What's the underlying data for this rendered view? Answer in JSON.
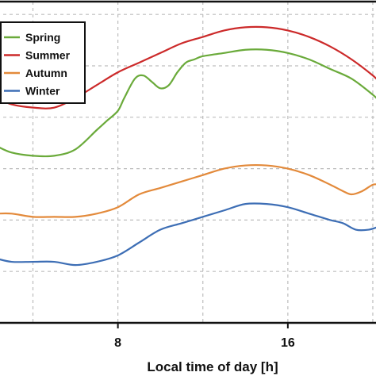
{
  "chart_data": {
    "type": "line",
    "title": "",
    "xlabel": "Local time of day [h]",
    "ylabel": "",
    "xlim": [
      2.3,
      20.3
    ],
    "ylim": [
      0,
      1
    ],
    "xticks": [
      8,
      16
    ],
    "xtick_labels": [
      "8",
      "16"
    ],
    "grid": true,
    "legend_position": "top-left",
    "series": [
      {
        "name": "Spring",
        "color": "#6aaa3a",
        "x": [
          2.3,
          3,
          4,
          5,
          6,
          7,
          7.5,
          8,
          8.3,
          8.8,
          9.2,
          9.6,
          10,
          10.4,
          10.8,
          11.2,
          11.6,
          12,
          13,
          14,
          15,
          16,
          17,
          18,
          19,
          20,
          20.3
        ],
        "y": [
          0.55,
          0.53,
          0.52,
          0.52,
          0.54,
          0.6,
          0.63,
          0.66,
          0.7,
          0.76,
          0.77,
          0.75,
          0.73,
          0.74,
          0.78,
          0.81,
          0.82,
          0.83,
          0.84,
          0.85,
          0.85,
          0.84,
          0.82,
          0.79,
          0.76,
          0.71,
          0.69
        ]
      },
      {
        "name": "Summer",
        "color": "#cc2a2a",
        "x": [
          2.3,
          3,
          4,
          5,
          6,
          7,
          8,
          9,
          10,
          11,
          12,
          13,
          14,
          15,
          16,
          17,
          18,
          19,
          20,
          20.3
        ],
        "y": [
          0.7,
          0.68,
          0.67,
          0.67,
          0.7,
          0.74,
          0.78,
          0.81,
          0.84,
          0.87,
          0.89,
          0.91,
          0.92,
          0.92,
          0.91,
          0.89,
          0.86,
          0.82,
          0.77,
          0.75
        ]
      },
      {
        "name": "Autumn",
        "color": "#e38a3b",
        "x": [
          2.3,
          3,
          4,
          5,
          6,
          7,
          8,
          9,
          10,
          11,
          12,
          13,
          14,
          15,
          16,
          17,
          18,
          18.6,
          19,
          19.5,
          20,
          20.3
        ],
        "y": [
          0.34,
          0.34,
          0.33,
          0.33,
          0.33,
          0.34,
          0.36,
          0.4,
          0.42,
          0.44,
          0.46,
          0.48,
          0.49,
          0.49,
          0.48,
          0.46,
          0.43,
          0.41,
          0.4,
          0.41,
          0.43,
          0.43
        ]
      },
      {
        "name": "Winter",
        "color": "#3d6eb5",
        "x": [
          2.3,
          3,
          4,
          5,
          6,
          7,
          8,
          9,
          10,
          11,
          12,
          13,
          14,
          15,
          16,
          17,
          18,
          18.6,
          19.2,
          19.8,
          20.3
        ],
        "y": [
          0.2,
          0.19,
          0.19,
          0.19,
          0.18,
          0.19,
          0.21,
          0.25,
          0.29,
          0.31,
          0.33,
          0.35,
          0.37,
          0.37,
          0.36,
          0.34,
          0.32,
          0.31,
          0.29,
          0.29,
          0.3
        ]
      }
    ]
  }
}
